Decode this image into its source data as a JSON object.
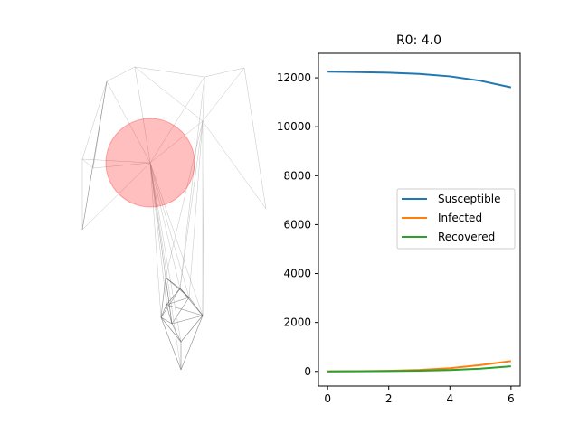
{
  "network_panel": {
    "highlight_color": "#ff0000"
  },
  "chart_data": {
    "type": "line",
    "title_prefix": "R0:",
    "r0": "4.0",
    "xlabel": "",
    "ylabel": "",
    "x": [
      0,
      1,
      2,
      3,
      4,
      5,
      6
    ],
    "xlim": [
      -0.3,
      6.3
    ],
    "ylim": [
      -600,
      13000
    ],
    "xticks": [
      0,
      2,
      4,
      6
    ],
    "yticks": [
      0,
      2000,
      4000,
      6000,
      8000,
      10000,
      12000
    ],
    "grid": false,
    "legend_position": "center-right",
    "series": [
      {
        "name": "Susceptible",
        "color": "#1f77b4",
        "values": [
          12250,
          12235,
          12210,
          12160,
          12060,
          11880,
          11610
        ]
      },
      {
        "name": "Infected",
        "color": "#ff7f0e",
        "values": [
          0,
          10,
          25,
          60,
          130,
          260,
          420
        ]
      },
      {
        "name": "Recovered",
        "color": "#2ca02c",
        "values": [
          0,
          5,
          15,
          30,
          55,
          110,
          210
        ]
      }
    ]
  }
}
